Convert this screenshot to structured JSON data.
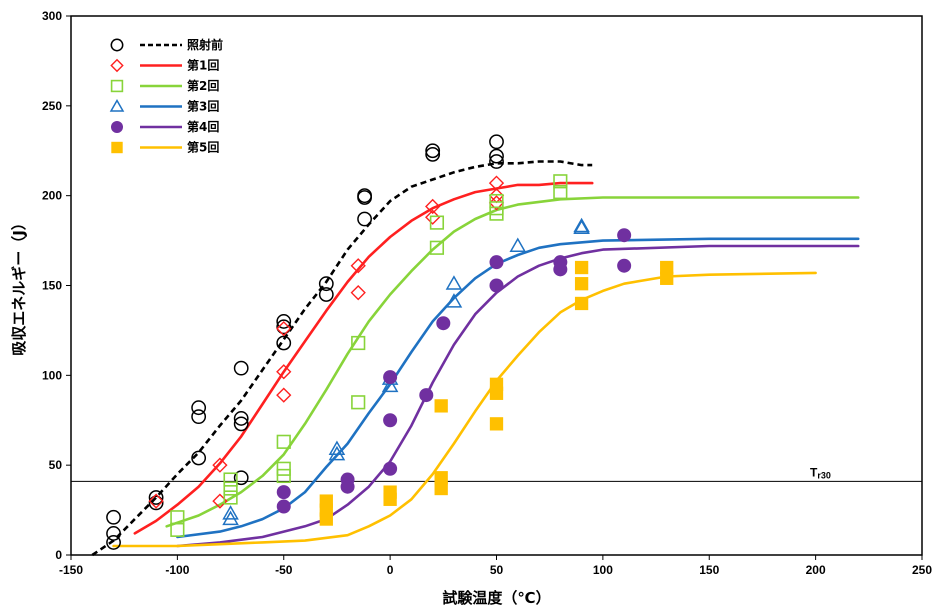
{
  "chart_data": {
    "type": "scatter",
    "xlabel": "試験温度（℃）",
    "ylabel": "吸収エネルギー（J）",
    "xlim": [
      -150,
      250
    ],
    "ylim": [
      0,
      300
    ],
    "x_ticks": [
      -150,
      -100,
      -50,
      0,
      50,
      100,
      150,
      200,
      250
    ],
    "y_ticks": [
      0,
      50,
      100,
      150,
      200,
      250,
      300
    ],
    "grid": false,
    "legend_position": "top-left",
    "reference_line": {
      "label_main": "T",
      "label_sub": "r30",
      "y": 41
    },
    "series": [
      {
        "name": "照射前",
        "color": "#000000",
        "marker": "circle-open",
        "line_style": "dashed",
        "points": [
          [
            -130,
            21
          ],
          [
            -130,
            12
          ],
          [
            -130,
            7
          ],
          [
            -110,
            32
          ],
          [
            -110,
            29
          ],
          [
            -90,
            82
          ],
          [
            -90,
            77
          ],
          [
            -90,
            54
          ],
          [
            -70,
            104
          ],
          [
            -70,
            76
          ],
          [
            -70,
            73
          ],
          [
            -70,
            43
          ],
          [
            -50,
            130
          ],
          [
            -50,
            127
          ],
          [
            -50,
            118
          ],
          [
            -30,
            151
          ],
          [
            -30,
            145
          ],
          [
            -12,
            200
          ],
          [
            -12,
            199
          ],
          [
            -12,
            187
          ],
          [
            20,
            225
          ],
          [
            20,
            223
          ],
          [
            50,
            230
          ],
          [
            50,
            222
          ],
          [
            50,
            219
          ]
        ],
        "curve": [
          [
            -140,
            0
          ],
          [
            -130,
            8
          ],
          [
            -120,
            20
          ],
          [
            -110,
            32
          ],
          [
            -100,
            45
          ],
          [
            -90,
            57
          ],
          [
            -80,
            72
          ],
          [
            -70,
            86
          ],
          [
            -60,
            103
          ],
          [
            -50,
            120
          ],
          [
            -40,
            137
          ],
          [
            -30,
            152
          ],
          [
            -20,
            170
          ],
          [
            -10,
            184
          ],
          [
            0,
            197
          ],
          [
            10,
            205
          ],
          [
            20,
            209
          ],
          [
            30,
            213
          ],
          [
            40,
            216
          ],
          [
            50,
            218
          ],
          [
            60,
            218
          ],
          [
            70,
            219
          ],
          [
            80,
            219
          ],
          [
            90,
            217
          ],
          [
            95,
            217
          ]
        ]
      },
      {
        "name": "第1回",
        "color": "#ff2020",
        "marker": "diamond-open",
        "line_style": "solid",
        "points": [
          [
            -110,
            30
          ],
          [
            -80,
            50
          ],
          [
            -80,
            30
          ],
          [
            -50,
            126
          ],
          [
            -50,
            102
          ],
          [
            -50,
            89
          ],
          [
            -15,
            161
          ],
          [
            -15,
            146
          ],
          [
            20,
            194
          ],
          [
            20,
            188
          ],
          [
            50,
            207
          ],
          [
            50,
            200
          ],
          [
            50,
            196
          ]
        ],
        "curve": [
          [
            -120,
            12
          ],
          [
            -110,
            19
          ],
          [
            -100,
            28
          ],
          [
            -90,
            38
          ],
          [
            -80,
            51
          ],
          [
            -70,
            66
          ],
          [
            -60,
            84
          ],
          [
            -50,
            102
          ],
          [
            -40,
            119
          ],
          [
            -30,
            136
          ],
          [
            -20,
            152
          ],
          [
            -10,
            166
          ],
          [
            0,
            177
          ],
          [
            10,
            186
          ],
          [
            20,
            193
          ],
          [
            30,
            198
          ],
          [
            40,
            202
          ],
          [
            50,
            204
          ],
          [
            60,
            206
          ],
          [
            70,
            206
          ],
          [
            80,
            207
          ],
          [
            95,
            207
          ]
        ]
      },
      {
        "name": "第2回",
        "color": "#88d43a",
        "marker": "square-open",
        "line_style": "solid",
        "points": [
          [
            -100,
            21
          ],
          [
            -100,
            14
          ],
          [
            -75,
            42
          ],
          [
            -75,
            37
          ],
          [
            -75,
            32
          ],
          [
            -50,
            63
          ],
          [
            -50,
            48
          ],
          [
            -50,
            44
          ],
          [
            -15,
            118
          ],
          [
            -15,
            85
          ],
          [
            22,
            185
          ],
          [
            22,
            171
          ],
          [
            50,
            197
          ],
          [
            50,
            193
          ],
          [
            50,
            190
          ],
          [
            80,
            208
          ],
          [
            80,
            202
          ]
        ],
        "curve": [
          [
            -105,
            16
          ],
          [
            -90,
            22
          ],
          [
            -80,
            28
          ],
          [
            -70,
            35
          ],
          [
            -60,
            44
          ],
          [
            -50,
            56
          ],
          [
            -40,
            73
          ],
          [
            -30,
            92
          ],
          [
            -20,
            112
          ],
          [
            -10,
            130
          ],
          [
            0,
            145
          ],
          [
            10,
            158
          ],
          [
            20,
            170
          ],
          [
            30,
            180
          ],
          [
            40,
            187
          ],
          [
            50,
            192
          ],
          [
            60,
            195
          ],
          [
            80,
            198
          ],
          [
            100,
            199
          ],
          [
            150,
            199
          ],
          [
            200,
            199
          ],
          [
            220,
            199
          ]
        ]
      },
      {
        "name": "第3回",
        "color": "#1f72c2",
        "marker": "triangle-open",
        "line_style": "solid",
        "points": [
          [
            -75,
            23
          ],
          [
            -75,
            20
          ],
          [
            -25,
            59
          ],
          [
            -25,
            56
          ],
          [
            0,
            98
          ],
          [
            0,
            94
          ],
          [
            30,
            151
          ],
          [
            30,
            141
          ],
          [
            60,
            172
          ],
          [
            90,
            183
          ],
          [
            90,
            182
          ]
        ],
        "curve": [
          [
            -100,
            10
          ],
          [
            -80,
            13
          ],
          [
            -70,
            16
          ],
          [
            -60,
            20
          ],
          [
            -50,
            26
          ],
          [
            -40,
            35
          ],
          [
            -30,
            49
          ],
          [
            -20,
            62
          ],
          [
            -10,
            79
          ],
          [
            0,
            95
          ],
          [
            10,
            113
          ],
          [
            20,
            130
          ],
          [
            30,
            143
          ],
          [
            40,
            154
          ],
          [
            50,
            162
          ],
          [
            60,
            167
          ],
          [
            70,
            171
          ],
          [
            80,
            173
          ],
          [
            100,
            175
          ],
          [
            150,
            176
          ],
          [
            200,
            176
          ],
          [
            220,
            176
          ]
        ]
      },
      {
        "name": "第4回",
        "color": "#7030a0",
        "marker": "circle-filled",
        "line_style": "solid",
        "points": [
          [
            -50,
            35
          ],
          [
            -50,
            27
          ],
          [
            -20,
            42
          ],
          [
            -20,
            38
          ],
          [
            0,
            99
          ],
          [
            0,
            75
          ],
          [
            0,
            48
          ],
          [
            17,
            89
          ],
          [
            25,
            129
          ],
          [
            50,
            163
          ],
          [
            50,
            150
          ],
          [
            80,
            163
          ],
          [
            80,
            159
          ],
          [
            110,
            178
          ],
          [
            110,
            161
          ]
        ],
        "curve": [
          [
            -100,
            5
          ],
          [
            -80,
            7
          ],
          [
            -60,
            10
          ],
          [
            -50,
            13
          ],
          [
            -40,
            16
          ],
          [
            -30,
            20
          ],
          [
            -20,
            28
          ],
          [
            -10,
            38
          ],
          [
            0,
            52
          ],
          [
            10,
            72
          ],
          [
            20,
            96
          ],
          [
            30,
            117
          ],
          [
            40,
            134
          ],
          [
            50,
            146
          ],
          [
            60,
            155
          ],
          [
            70,
            161
          ],
          [
            80,
            165
          ],
          [
            90,
            168
          ],
          [
            100,
            170
          ],
          [
            150,
            172
          ],
          [
            200,
            172
          ],
          [
            220,
            172
          ]
        ]
      },
      {
        "name": "第5回",
        "color": "#ffc000",
        "marker": "square-filled",
        "line_style": "solid",
        "points": [
          [
            -30,
            30
          ],
          [
            -30,
            25
          ],
          [
            -30,
            20
          ],
          [
            0,
            35
          ],
          [
            0,
            31
          ],
          [
            24,
            83
          ],
          [
            24,
            43
          ],
          [
            24,
            37
          ],
          [
            50,
            95
          ],
          [
            50,
            90
          ],
          [
            50,
            73
          ],
          [
            90,
            160
          ],
          [
            90,
            151
          ],
          [
            90,
            140
          ],
          [
            130,
            160
          ],
          [
            130,
            154
          ]
        ],
        "curve": [
          [
            -130,
            5
          ],
          [
            -100,
            5
          ],
          [
            -80,
            6
          ],
          [
            -60,
            7
          ],
          [
            -40,
            8
          ],
          [
            -20,
            11
          ],
          [
            -10,
            16
          ],
          [
            0,
            22
          ],
          [
            10,
            31
          ],
          [
            20,
            45
          ],
          [
            30,
            62
          ],
          [
            40,
            80
          ],
          [
            50,
            97
          ],
          [
            60,
            111
          ],
          [
            70,
            124
          ],
          [
            80,
            135
          ],
          [
            90,
            142
          ],
          [
            100,
            147
          ],
          [
            110,
            151
          ],
          [
            130,
            155
          ],
          [
            150,
            156
          ],
          [
            200,
            157
          ]
        ]
      }
    ]
  }
}
